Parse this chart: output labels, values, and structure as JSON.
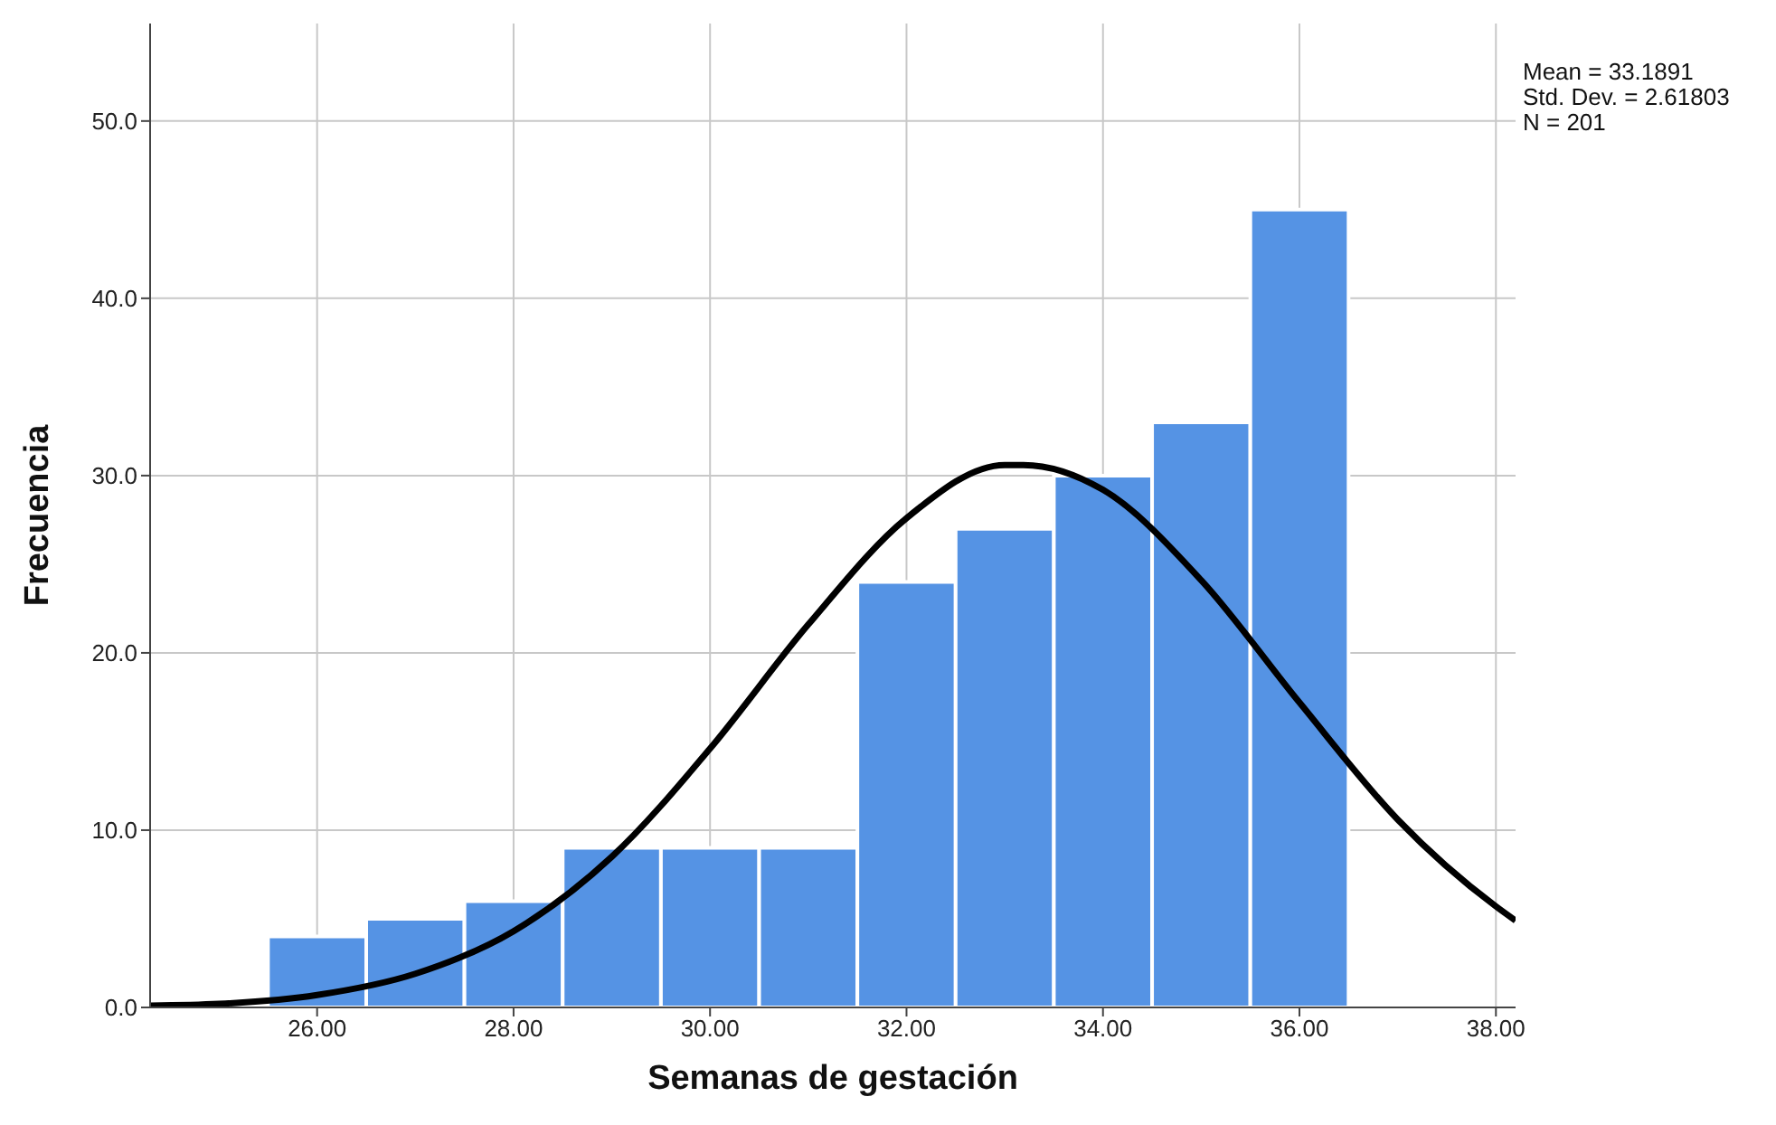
{
  "chart_data": {
    "type": "histogram",
    "xlabel": "Semanas de gestación",
    "ylabel": "Frecuencia",
    "bins": [
      25.5,
      26.5,
      27.5,
      28.5,
      29.5,
      30.5,
      31.5,
      32.5,
      33.5,
      34.5,
      35.5,
      36.5
    ],
    "values": [
      4,
      5,
      6,
      9,
      9,
      9,
      24,
      27,
      30,
      33,
      45
    ],
    "color": "#5593e4",
    "series": [
      {
        "type": "line",
        "color": "#000000",
        "x": [
          24.3,
          25,
          26,
          27,
          28,
          29,
          30,
          31,
          32,
          33,
          33.19,
          34,
          35,
          36,
          37,
          38,
          38.2
        ],
        "values": [
          0.1,
          0.2,
          0.7,
          1.9,
          4.3,
          8.5,
          14.6,
          21.6,
          27.6,
          30.6,
          30.6,
          29.2,
          24.1,
          17.2,
          10.6,
          5.7,
          4.9
        ]
      }
    ],
    "xlim": [
      24.3,
      38.2
    ],
    "xticks": [
      {
        "value": 26,
        "label": "26.00"
      },
      {
        "value": 28,
        "label": "28.00"
      },
      {
        "value": 30,
        "label": "30.00"
      },
      {
        "value": 32,
        "label": "32.00"
      },
      {
        "value": 34,
        "label": "34.00"
      },
      {
        "value": 36,
        "label": "36.00"
      },
      {
        "value": 38,
        "label": "38.00"
      }
    ],
    "ylim": [
      0,
      55.5
    ],
    "yticks": [
      {
        "value": 0,
        "label": "0.0"
      },
      {
        "value": 10,
        "label": "10.0"
      },
      {
        "value": 20,
        "label": "20.0"
      },
      {
        "value": 30,
        "label": "30.0"
      },
      {
        "value": 40,
        "label": "40.0"
      },
      {
        "value": 50,
        "label": "50.0"
      }
    ],
    "grid": true,
    "annotations": [
      "Mean = 33.1891",
      "Std. Dev. = 2.61803",
      "N = 201"
    ]
  }
}
